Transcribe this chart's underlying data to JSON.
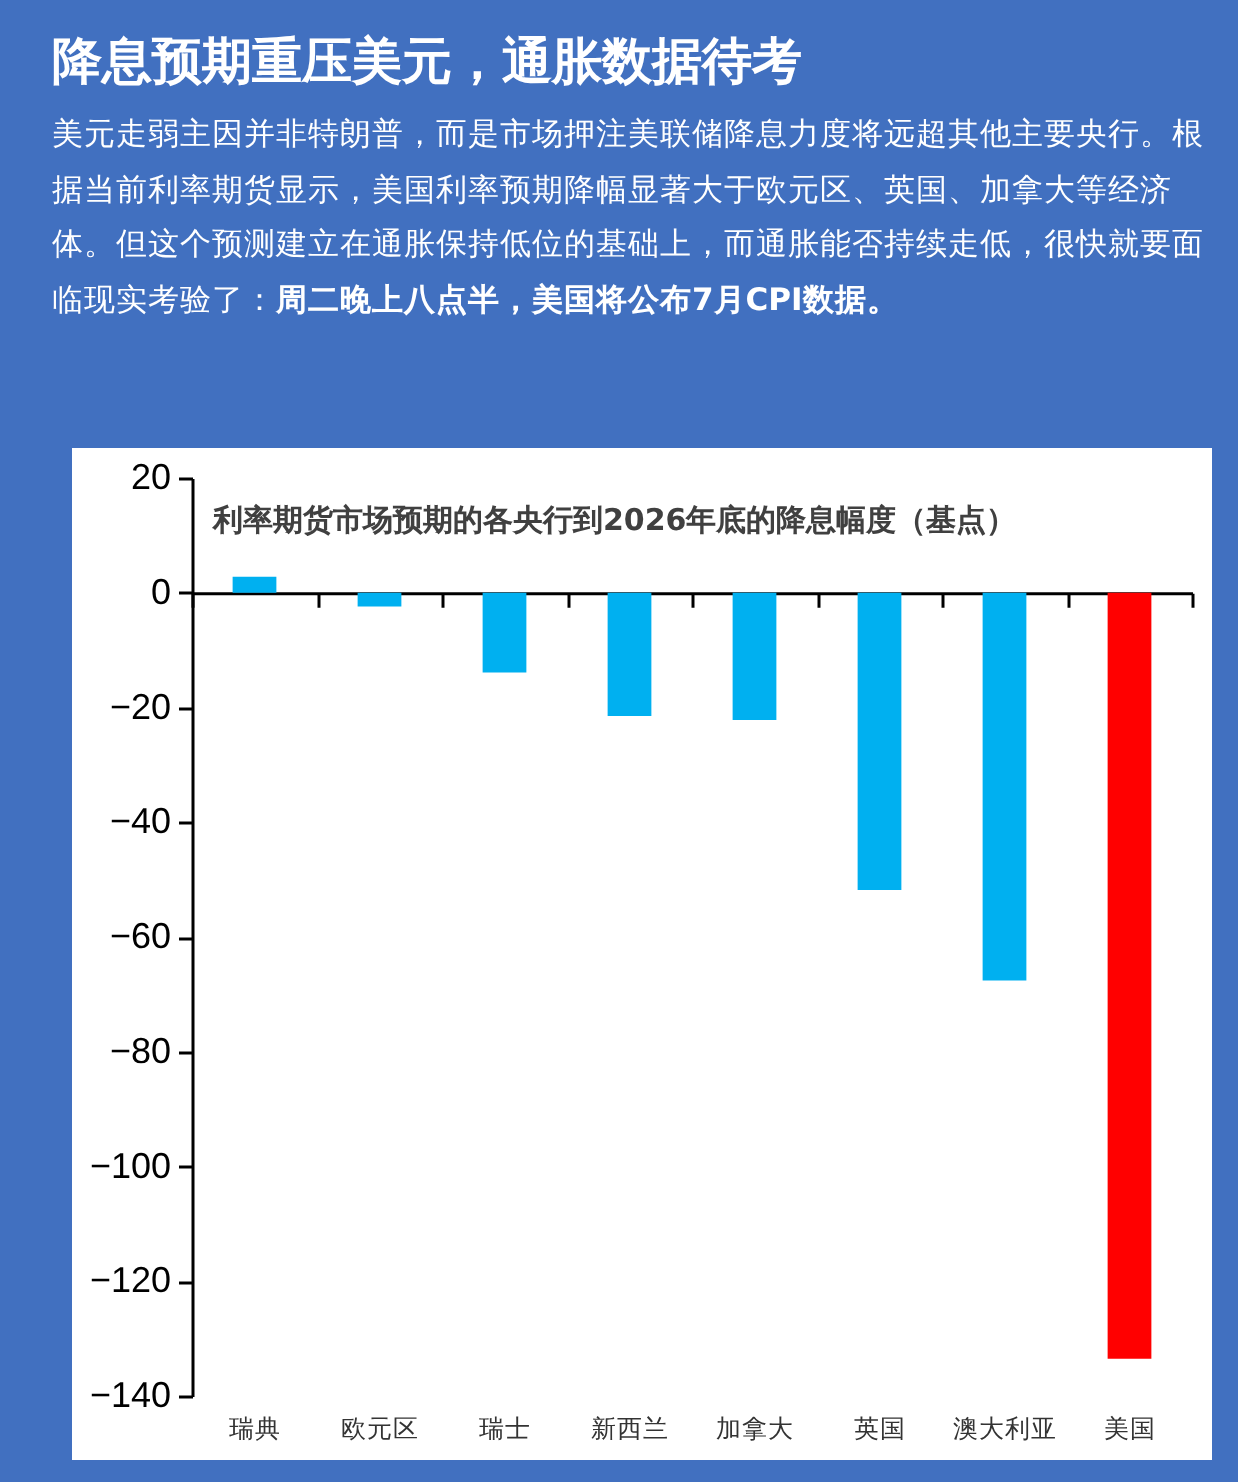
{
  "chart_data": {
    "type": "bar",
    "title": "降息预期重压美元，通胀数据待考",
    "subtitle": "美元走弱主因并非特朗普，而是市场押注美联储降息力度将远超其他主要央行。根据当前利率期货显示，美国利率预期降幅显著大于欧元区、英国、加拿大等经济体。但这个预测建立在通胀保持低位的基础上，而通胀能否持续走低，很快就要面临现实考验了：",
    "annotations": [
      "周二晚上八点半，美国将公布7月CPI数据。",
      "利率期货市场预期的各央行到2026年底的降息幅度（基点）"
    ],
    "categories": [
      "瑞典",
      "欧元区",
      "瑞士",
      "新西兰",
      "加拿大",
      "英国",
      "澳大利亚",
      "美国"
    ],
    "values": [
      2.8,
      -2.4,
      -13.9,
      -21.5,
      -22.2,
      -51.8,
      -67.6,
      -133.5
    ],
    "colors": [
      "#00b0f0",
      "#00b0f0",
      "#00b0f0",
      "#00b0f0",
      "#00b0f0",
      "#00b0f0",
      "#00b0f0",
      "#ff0000"
    ],
    "ylim": [
      -140,
      20
    ],
    "yticks": [
      -140,
      -120,
      -100,
      -80,
      -60,
      -40,
      -20,
      0,
      20
    ]
  }
}
